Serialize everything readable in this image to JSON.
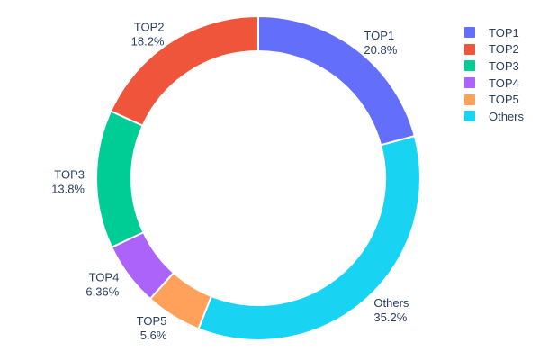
{
  "chart_data": {
    "type": "pie",
    "hole": 0.783,
    "background": "#ffffff",
    "label_color": "#2a3f5f",
    "separator_color": "#ffffff",
    "legend_position": "right",
    "slices": [
      {
        "label": "TOP1",
        "value": 20.8,
        "pct_label": "20.8%",
        "color": "#636EFA"
      },
      {
        "label": "TOP2",
        "value": 18.2,
        "pct_label": "18.2%",
        "color": "#EF553B"
      },
      {
        "label": "TOP3",
        "value": 13.8,
        "pct_label": "13.8%",
        "color": "#00CC96"
      },
      {
        "label": "TOP4",
        "value": 6.36,
        "pct_label": "6.36%",
        "color": "#AB63FA"
      },
      {
        "label": "TOP5",
        "value": 5.6,
        "pct_label": "5.6%",
        "color": "#FFA15A"
      },
      {
        "label": "Others",
        "value": 35.2,
        "pct_label": "35.2%",
        "color": "#19D3F3"
      }
    ],
    "clockwise_order": [
      "TOP1",
      "Others",
      "TOP5",
      "TOP4",
      "TOP3",
      "TOP2"
    ],
    "legend_order": [
      "TOP1",
      "TOP2",
      "TOP3",
      "TOP4",
      "TOP5",
      "Others"
    ]
  }
}
